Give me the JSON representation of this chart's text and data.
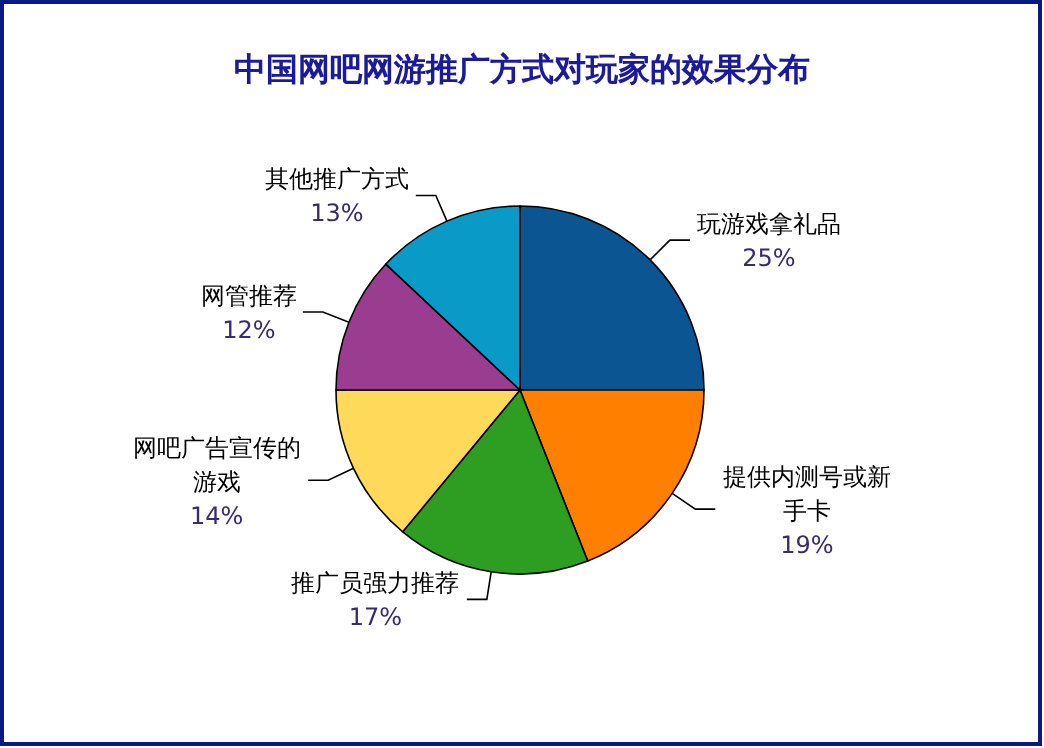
{
  "chart_data": {
    "type": "pie",
    "title": "中国网吧网游推广方式对玩家的效果分布",
    "categories": [
      "玩游戏拿礼品",
      "提供内测号或新手卡",
      "推广员强力推荐",
      "网吧广告宣传的游戏",
      "网管推荐",
      "其他推广方式"
    ],
    "values": [
      25,
      19,
      17,
      14,
      12,
      13
    ],
    "colors": [
      "#0b5592",
      "#ff8000",
      "#2e9e22",
      "#ffd95a",
      "#9a3c8f",
      "#0a9ac8"
    ],
    "value_labels": [
      "25%",
      "19%",
      "17%",
      "14%",
      "12%",
      "13%"
    ]
  }
}
